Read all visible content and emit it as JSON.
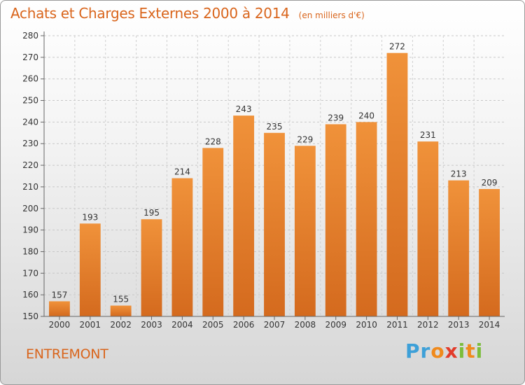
{
  "chart_data": {
    "type": "bar",
    "title": "Achats et Charges Externes 2000 à 2014",
    "subtitle": "(en milliers d'€)",
    "categories": [
      "2000",
      "2001",
      "2002",
      "2003",
      "2004",
      "2005",
      "2006",
      "2007",
      "2008",
      "2009",
      "2010",
      "2011",
      "2012",
      "2013",
      "2014"
    ],
    "values": [
      157,
      193,
      155,
      195,
      214,
      228,
      243,
      235,
      229,
      239,
      240,
      272,
      231,
      213,
      209
    ],
    "ylim": [
      150,
      280
    ],
    "yticks": [
      150,
      160,
      170,
      180,
      190,
      200,
      210,
      220,
      230,
      240,
      250,
      260,
      270,
      280
    ],
    "grid": true,
    "bar_color": "#f0923a",
    "bar_color_dark": "#d46a1e"
  },
  "footer": {
    "commune": "ENTREMONT",
    "logo": {
      "p": "P",
      "r": "r",
      "o": "o",
      "x": "x",
      "i1": "i",
      "t": "t",
      "i2": "i"
    }
  }
}
